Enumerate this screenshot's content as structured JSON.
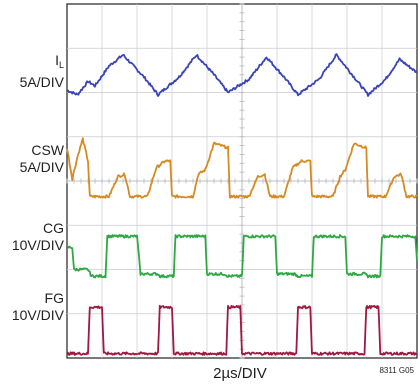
{
  "chart_data": {
    "type": "line",
    "title": "",
    "xlabel": "2µs/DIV",
    "figure_id": "8311 G05",
    "divisions": {
      "x": 10,
      "y": 8
    },
    "grid": true,
    "series": [
      {
        "name": "IL",
        "label_main": "I",
        "label_sub": "L",
        "scale": "5A/DIV",
        "color": "#3a44b8",
        "offset_div": 6.3,
        "description": "triangular ripple",
        "points": [
          [
            0.0,
            -0.25
          ],
          [
            0.3,
            -0.35
          ],
          [
            0.6,
            -0.05
          ],
          [
            0.8,
            -0.15
          ],
          [
            1.2,
            0.3
          ],
          [
            1.6,
            0.55
          ],
          [
            2.2,
            0.05
          ],
          [
            2.6,
            -0.35
          ],
          [
            3.2,
            0.05
          ],
          [
            3.7,
            0.55
          ],
          [
            4.2,
            0.1
          ],
          [
            4.6,
            -0.3
          ],
          [
            5.2,
            0.0
          ],
          [
            5.7,
            0.5
          ],
          [
            6.2,
            0.05
          ],
          [
            6.6,
            -0.35
          ],
          [
            7.2,
            0.0
          ],
          [
            7.7,
            0.55
          ],
          [
            8.2,
            0.05
          ],
          [
            8.6,
            -0.35
          ],
          [
            9.1,
            0.0
          ],
          [
            9.5,
            0.45
          ],
          [
            10.0,
            0.15
          ]
        ]
      },
      {
        "name": "CSW",
        "scale": "5A/DIV",
        "color": "#d68a23",
        "offset_div": 4.15,
        "points": [
          [
            0.0,
            0.6
          ],
          [
            0.15,
            -0.1
          ],
          [
            0.3,
            0.4
          ],
          [
            0.45,
            0.8
          ],
          [
            0.6,
            0.3
          ],
          [
            0.65,
            -0.5
          ],
          [
            1.2,
            -0.5
          ],
          [
            1.45,
            -0.05
          ],
          [
            1.65,
            0.0
          ],
          [
            1.8,
            -0.5
          ],
          [
            2.3,
            -0.5
          ],
          [
            2.55,
            0.15
          ],
          [
            2.8,
            0.3
          ],
          [
            2.95,
            0.3
          ],
          [
            3.0,
            -0.5
          ],
          [
            3.6,
            -0.5
          ],
          [
            3.75,
            0.0
          ],
          [
            3.95,
            0.1
          ],
          [
            4.2,
            0.7
          ],
          [
            4.6,
            0.6
          ],
          [
            4.65,
            -0.5
          ],
          [
            5.2,
            -0.5
          ],
          [
            5.45,
            -0.05
          ],
          [
            5.65,
            0.0
          ],
          [
            5.8,
            -0.5
          ],
          [
            6.2,
            -0.5
          ],
          [
            6.45,
            0.15
          ],
          [
            6.7,
            0.3
          ],
          [
            6.95,
            0.3
          ],
          [
            7.0,
            -0.5
          ],
          [
            7.6,
            -0.5
          ],
          [
            7.8,
            -0.05
          ],
          [
            7.95,
            0.1
          ],
          [
            8.2,
            0.7
          ],
          [
            8.55,
            0.6
          ],
          [
            8.6,
            -0.5
          ],
          [
            9.1,
            -0.5
          ],
          [
            9.35,
            -0.05
          ],
          [
            9.55,
            0.0
          ],
          [
            9.7,
            -0.5
          ],
          [
            10.0,
            -0.5
          ]
        ]
      },
      {
        "name": "CG",
        "scale": "10V/DIV",
        "color": "#2fa844",
        "offset_div": 2.2,
        "points": [
          [
            0.0,
            0.3
          ],
          [
            0.15,
            0.3
          ],
          [
            0.2,
            -0.2
          ],
          [
            0.6,
            -0.2
          ],
          [
            0.7,
            -0.35
          ],
          [
            1.1,
            -0.35
          ],
          [
            1.15,
            0.55
          ],
          [
            2.0,
            0.55
          ],
          [
            2.1,
            -0.3
          ],
          [
            2.6,
            -0.3
          ],
          [
            2.65,
            -0.35
          ],
          [
            3.05,
            -0.35
          ],
          [
            3.1,
            0.55
          ],
          [
            3.95,
            0.55
          ],
          [
            4.0,
            -0.3
          ],
          [
            4.5,
            -0.3
          ],
          [
            4.6,
            -0.35
          ],
          [
            5.0,
            -0.35
          ],
          [
            5.05,
            0.55
          ],
          [
            5.95,
            0.55
          ],
          [
            6.0,
            -0.3
          ],
          [
            6.5,
            -0.3
          ],
          [
            6.6,
            -0.35
          ],
          [
            7.0,
            -0.35
          ],
          [
            7.05,
            0.55
          ],
          [
            7.95,
            0.55
          ],
          [
            8.0,
            -0.3
          ],
          [
            8.5,
            -0.3
          ],
          [
            8.6,
            -0.35
          ],
          [
            8.95,
            -0.35
          ],
          [
            9.0,
            0.55
          ],
          [
            9.95,
            0.55
          ],
          [
            10.0,
            0.0
          ]
        ]
      },
      {
        "name": "FG",
        "scale": "10V/DIV",
        "color": "#a0173f",
        "offset_div": 0.6,
        "points": [
          [
            0.0,
            -0.5
          ],
          [
            0.6,
            -0.5
          ],
          [
            0.65,
            0.55
          ],
          [
            1.0,
            0.55
          ],
          [
            1.05,
            -0.5
          ],
          [
            2.6,
            -0.5
          ],
          [
            2.65,
            0.55
          ],
          [
            3.0,
            0.55
          ],
          [
            3.05,
            -0.5
          ],
          [
            4.55,
            -0.5
          ],
          [
            4.6,
            0.55
          ],
          [
            4.95,
            0.55
          ],
          [
            5.0,
            -0.5
          ],
          [
            6.55,
            -0.5
          ],
          [
            6.6,
            0.55
          ],
          [
            6.95,
            0.55
          ],
          [
            7.0,
            -0.5
          ],
          [
            8.5,
            -0.5
          ],
          [
            8.55,
            0.55
          ],
          [
            8.9,
            0.55
          ],
          [
            8.95,
            -0.5
          ],
          [
            10.0,
            -0.5
          ]
        ]
      }
    ]
  }
}
